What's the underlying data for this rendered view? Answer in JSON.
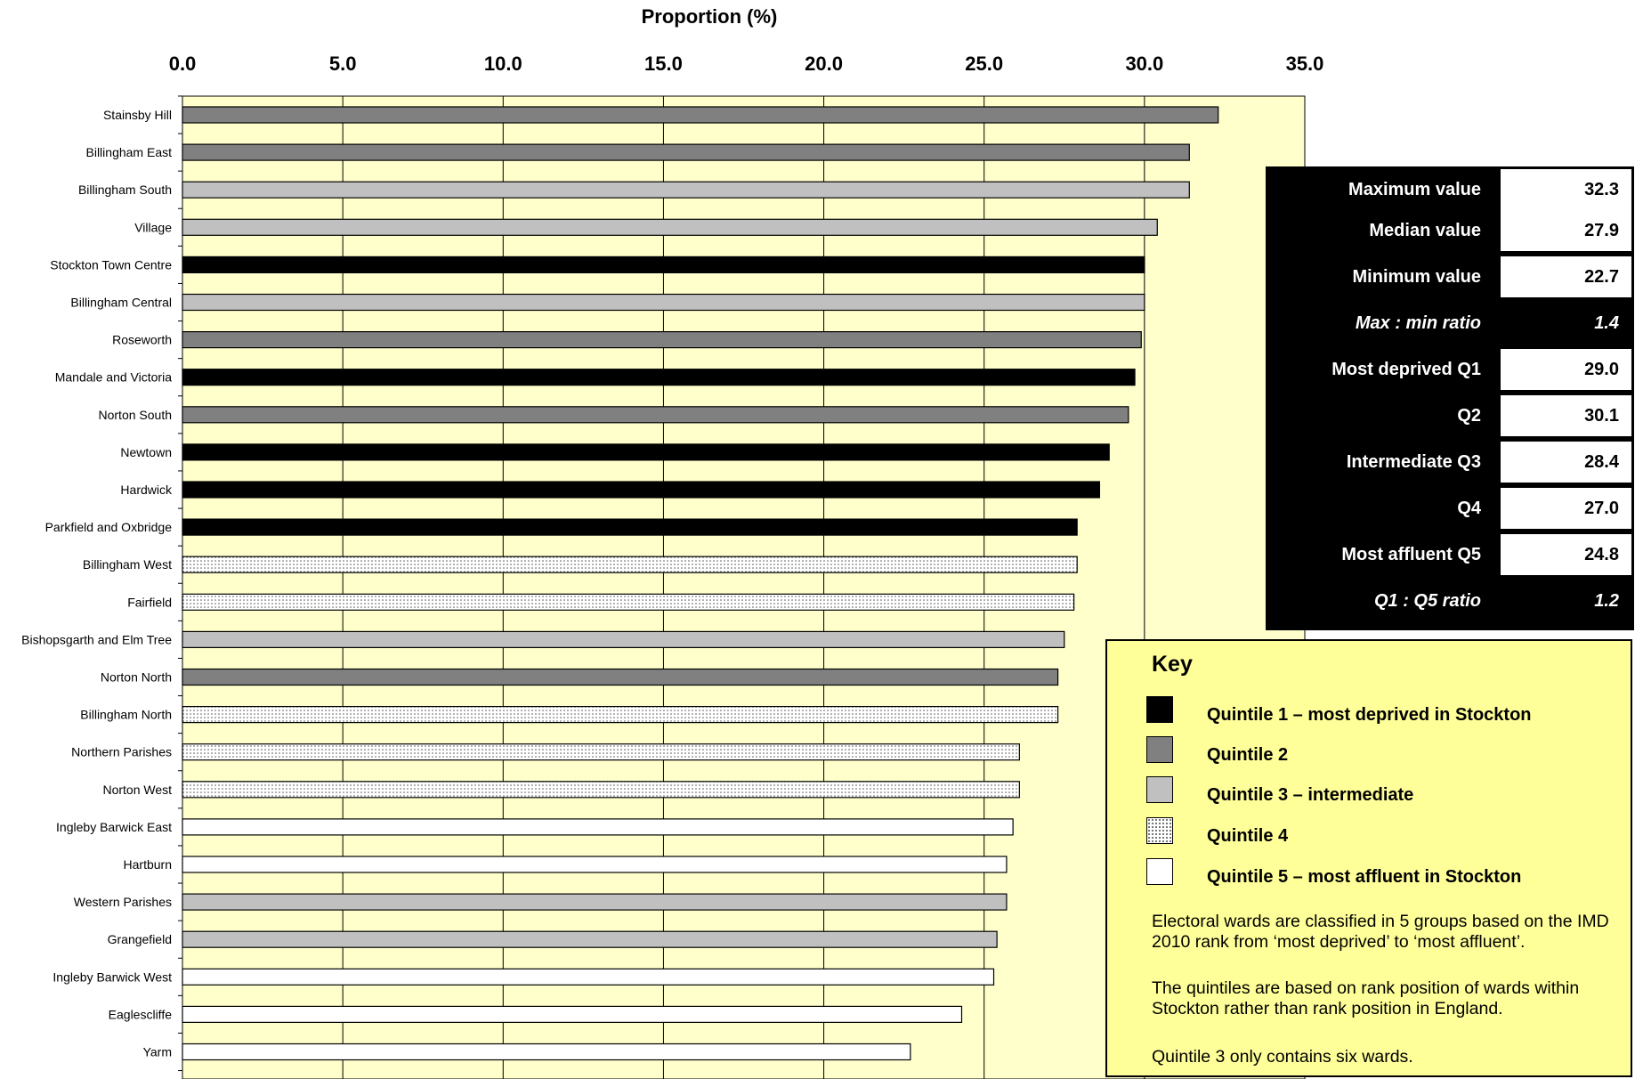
{
  "chart_data": {
    "type": "bar",
    "orientation": "horizontal",
    "title": "Proportion (%)",
    "xlim": [
      0,
      35
    ],
    "x_ticks": [
      "0.0",
      "5.0",
      "10.0",
      "15.0",
      "20.0",
      "25.0",
      "30.0",
      "35.0"
    ],
    "grid": "vertical",
    "categories": [
      "Stainsby Hill",
      "Billingham East",
      "Billingham South",
      "Village",
      "Stockton Town Centre",
      "Billingham Central",
      "Roseworth",
      "Mandale and Victoria",
      "Norton South",
      "Newtown",
      "Hardwick",
      "Parkfield and Oxbridge",
      "Billingham West",
      "Fairfield",
      "Bishopsgarth and Elm Tree",
      "Norton North",
      "Billingham North",
      "Northern Parishes",
      "Norton West",
      "Ingleby Barwick East",
      "Hartburn",
      "Western Parishes",
      "Grangefield",
      "Ingleby Barwick West",
      "Eaglescliffe",
      "Yarm"
    ],
    "values": [
      32.3,
      31.4,
      31.4,
      30.4,
      30.0,
      30.0,
      29.9,
      29.7,
      29.5,
      28.9,
      28.6,
      27.9,
      27.9,
      27.8,
      27.5,
      27.3,
      27.3,
      26.1,
      26.1,
      25.9,
      25.7,
      25.7,
      25.4,
      25.3,
      24.3,
      22.7
    ],
    "quintile": [
      2,
      2,
      3,
      3,
      1,
      3,
      2,
      1,
      2,
      1,
      1,
      1,
      4,
      4,
      3,
      2,
      4,
      4,
      4,
      5,
      5,
      3,
      3,
      5,
      5,
      5
    ],
    "quintile_colors": {
      "1": "#000000",
      "2": "#808080",
      "3": "#c0c0c0",
      "4": "dotted",
      "5": "#ffffff"
    },
    "plot_background": "#ffffcc"
  },
  "stats": [
    {
      "label": "Maximum value",
      "value": "32.3",
      "style": "normal"
    },
    {
      "label": "Median value",
      "value": "27.9",
      "style": "normal"
    },
    {
      "label": "Minimum value",
      "value": "22.7",
      "style": "normal"
    },
    {
      "label": "Max : min ratio",
      "value": "1.4",
      "style": "ratio"
    },
    {
      "label": "Most deprived Q1",
      "value": "29.0",
      "style": "normal"
    },
    {
      "label": "Q2",
      "value": "30.1",
      "style": "normal"
    },
    {
      "label": "Intermediate Q3",
      "value": "28.4",
      "style": "normal"
    },
    {
      "label": "Q4",
      "value": "27.0",
      "style": "normal"
    },
    {
      "label": "Most affluent Q5",
      "value": "24.8",
      "style": "normal"
    },
    {
      "label": "Q1 : Q5 ratio",
      "value": "1.2",
      "style": "ratio"
    }
  ],
  "key": {
    "title": "Key",
    "items": [
      {
        "label": "Quintile 1 –  most deprived in Stockton"
      },
      {
        "label": "Quintile 2"
      },
      {
        "label": "Quintile 3 – intermediate"
      },
      {
        "label": "Quintile 4"
      },
      {
        "label": "Quintile 5 – most affluent in Stockton"
      }
    ],
    "notes": [
      "Electoral wards are classified in 5 groups based on the IMD 2010 rank from ‘most deprived’ to ‘most affluent’.",
      "The quintiles are based on rank position of wards within Stockton rather than rank position in England.",
      "Quintile 3 only contains six wards."
    ]
  }
}
